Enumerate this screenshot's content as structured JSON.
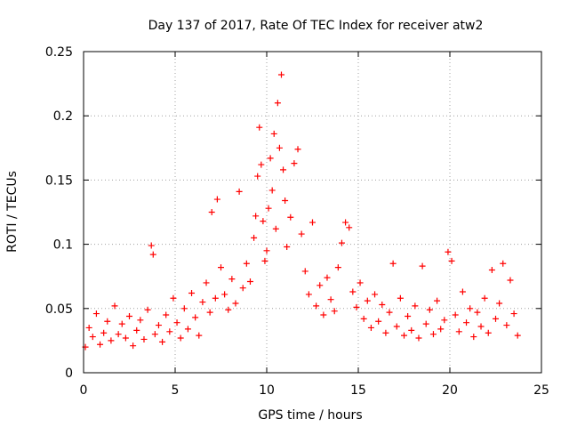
{
  "chart_data": {
    "type": "scatter",
    "title": "Day 137 of 2017, Rate Of TEC Index for receiver atw2",
    "xlabel": "GPS time / hours",
    "ylabel": "ROTI / TECUs",
    "xlim": [
      0,
      25
    ],
    "ylim": [
      0,
      0.25
    ],
    "xticks": [
      "0",
      "5",
      "10",
      "15",
      "20",
      "25"
    ],
    "yticks": [
      "0",
      "0.05",
      "0.1",
      "0.15",
      "0.2",
      "0.25"
    ],
    "grid": true,
    "marker": "plus",
    "color": "#ff0000",
    "series": [
      {
        "name": "ROTI",
        "points": [
          [
            0.1,
            0.02
          ],
          [
            0.3,
            0.035
          ],
          [
            0.5,
            0.028
          ],
          [
            0.7,
            0.046
          ],
          [
            0.9,
            0.022
          ],
          [
            1.1,
            0.031
          ],
          [
            1.3,
            0.04
          ],
          [
            1.5,
            0.025
          ],
          [
            1.7,
            0.052
          ],
          [
            1.9,
            0.03
          ],
          [
            2.1,
            0.038
          ],
          [
            2.3,
            0.027
          ],
          [
            2.5,
            0.044
          ],
          [
            2.7,
            0.021
          ],
          [
            2.9,
            0.033
          ],
          [
            3.1,
            0.041
          ],
          [
            3.3,
            0.026
          ],
          [
            3.5,
            0.049
          ],
          [
            3.7,
            0.099
          ],
          [
            3.8,
            0.092
          ],
          [
            3.9,
            0.03
          ],
          [
            4.1,
            0.037
          ],
          [
            4.3,
            0.024
          ],
          [
            4.5,
            0.045
          ],
          [
            4.7,
            0.032
          ],
          [
            4.9,
            0.058
          ],
          [
            5.1,
            0.039
          ],
          [
            5.3,
            0.027
          ],
          [
            5.5,
            0.05
          ],
          [
            5.7,
            0.034
          ],
          [
            5.9,
            0.062
          ],
          [
            6.1,
            0.043
          ],
          [
            6.3,
            0.029
          ],
          [
            6.5,
            0.055
          ],
          [
            6.7,
            0.07
          ],
          [
            6.9,
            0.047
          ],
          [
            7.0,
            0.125
          ],
          [
            7.2,
            0.058
          ],
          [
            7.3,
            0.135
          ],
          [
            7.5,
            0.082
          ],
          [
            7.7,
            0.061
          ],
          [
            7.9,
            0.049
          ],
          [
            8.1,
            0.073
          ],
          [
            8.3,
            0.054
          ],
          [
            8.5,
            0.141
          ],
          [
            8.7,
            0.066
          ],
          [
            8.9,
            0.085
          ],
          [
            9.1,
            0.071
          ],
          [
            9.3,
            0.105
          ],
          [
            9.4,
            0.122
          ],
          [
            9.5,
            0.153
          ],
          [
            9.6,
            0.191
          ],
          [
            9.7,
            0.162
          ],
          [
            9.8,
            0.118
          ],
          [
            9.9,
            0.087
          ],
          [
            10.0,
            0.095
          ],
          [
            10.1,
            0.128
          ],
          [
            10.2,
            0.167
          ],
          [
            10.3,
            0.142
          ],
          [
            10.4,
            0.186
          ],
          [
            10.5,
            0.112
          ],
          [
            10.6,
            0.21
          ],
          [
            10.7,
            0.175
          ],
          [
            10.8,
            0.232
          ],
          [
            10.9,
            0.158
          ],
          [
            11.0,
            0.134
          ],
          [
            11.1,
            0.098
          ],
          [
            11.3,
            0.121
          ],
          [
            11.5,
            0.163
          ],
          [
            11.7,
            0.174
          ],
          [
            11.9,
            0.108
          ],
          [
            12.1,
            0.079
          ],
          [
            12.3,
            0.061
          ],
          [
            12.5,
            0.117
          ],
          [
            12.7,
            0.052
          ],
          [
            12.9,
            0.068
          ],
          [
            13.1,
            0.045
          ],
          [
            13.3,
            0.074
          ],
          [
            13.5,
            0.057
          ],
          [
            13.7,
            0.048
          ],
          [
            13.9,
            0.082
          ],
          [
            14.1,
            0.101
          ],
          [
            14.3,
            0.117
          ],
          [
            14.5,
            0.113
          ],
          [
            14.7,
            0.063
          ],
          [
            14.9,
            0.051
          ],
          [
            15.1,
            0.07
          ],
          [
            15.3,
            0.042
          ],
          [
            15.5,
            0.056
          ],
          [
            15.7,
            0.035
          ],
          [
            15.9,
            0.061
          ],
          [
            16.1,
            0.04
          ],
          [
            16.3,
            0.053
          ],
          [
            16.5,
            0.031
          ],
          [
            16.7,
            0.047
          ],
          [
            16.9,
            0.085
          ],
          [
            17.1,
            0.036
          ],
          [
            17.3,
            0.058
          ],
          [
            17.5,
            0.029
          ],
          [
            17.7,
            0.044
          ],
          [
            17.9,
            0.033
          ],
          [
            18.1,
            0.052
          ],
          [
            18.3,
            0.027
          ],
          [
            18.5,
            0.083
          ],
          [
            18.7,
            0.038
          ],
          [
            18.9,
            0.049
          ],
          [
            19.1,
            0.03
          ],
          [
            19.3,
            0.056
          ],
          [
            19.5,
            0.034
          ],
          [
            19.7,
            0.041
          ],
          [
            19.9,
            0.094
          ],
          [
            20.1,
            0.087
          ],
          [
            20.3,
            0.045
          ],
          [
            20.5,
            0.032
          ],
          [
            20.7,
            0.063
          ],
          [
            20.9,
            0.039
          ],
          [
            21.1,
            0.05
          ],
          [
            21.3,
            0.028
          ],
          [
            21.5,
            0.047
          ],
          [
            21.7,
            0.036
          ],
          [
            21.9,
            0.058
          ],
          [
            22.1,
            0.031
          ],
          [
            22.3,
            0.08
          ],
          [
            22.5,
            0.042
          ],
          [
            22.7,
            0.054
          ],
          [
            22.9,
            0.085
          ],
          [
            23.1,
            0.037
          ],
          [
            23.3,
            0.072
          ],
          [
            23.5,
            0.046
          ],
          [
            23.7,
            0.029
          ]
        ]
      }
    ]
  }
}
